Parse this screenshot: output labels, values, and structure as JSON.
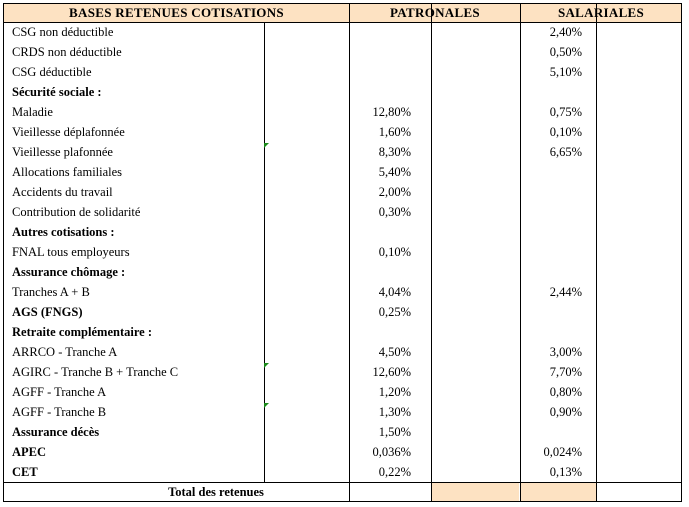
{
  "headers": {
    "bases": "BASES RETENUES COTISATIONS",
    "patronales": "PATRONALES",
    "salariales": "SALARIALES"
  },
  "rows": [
    {
      "label": "CSG non déductible",
      "bold": false,
      "patronal": "",
      "salarial": "2,40%"
    },
    {
      "label": "CRDS non déductible",
      "bold": false,
      "patronal": "",
      "salarial": "0,50%"
    },
    {
      "label": "CSG déductible",
      "bold": false,
      "patronal": "",
      "salarial": "5,10%"
    },
    {
      "label": "Sécurité sociale :",
      "bold": true,
      "patronal": "",
      "salarial": ""
    },
    {
      "label": "Maladie",
      "bold": false,
      "patronal": "12,80%",
      "salarial": "0,75%"
    },
    {
      "label": "Vieillesse déplafonnée",
      "bold": false,
      "patronal": "1,60%",
      "salarial": "0,10%"
    },
    {
      "label": "Vieillesse plafonnée",
      "bold": false,
      "patronal": "8,30%",
      "salarial": "6,65%"
    },
    {
      "label": "Allocations familiales",
      "bold": false,
      "patronal": "5,40%",
      "salarial": ""
    },
    {
      "label": "Accidents du travail",
      "bold": false,
      "patronal": "2,00%",
      "salarial": ""
    },
    {
      "label": "Contribution de solidarité",
      "bold": false,
      "patronal": "0,30%",
      "salarial": ""
    },
    {
      "label": "Autres cotisations :",
      "bold": true,
      "patronal": "",
      "salarial": ""
    },
    {
      "label": "FNAL tous employeurs",
      "bold": false,
      "patronal": "0,10%",
      "salarial": ""
    },
    {
      "label": "Assurance chômage :",
      "bold": true,
      "patronal": "",
      "salarial": ""
    },
    {
      "label": "Tranches A + B",
      "bold": false,
      "patronal": "4,04%",
      "salarial": "2,44%"
    },
    {
      "label": "AGS (FNGS)",
      "bold": true,
      "patronal": "0,25%",
      "salarial": ""
    },
    {
      "label": "Retraite complémentaire :",
      "bold": true,
      "patronal": "",
      "salarial": ""
    },
    {
      "label": "ARRCO - Tranche A",
      "bold": false,
      "patronal": "4,50%",
      "salarial": "3,00%"
    },
    {
      "label": "AGIRC - Tranche B + Tranche C",
      "bold": false,
      "patronal": "12,60%",
      "salarial": "7,70%"
    },
    {
      "label": "AGFF - Tranche A",
      "bold": false,
      "patronal": "1,20%",
      "salarial": "0,80%"
    },
    {
      "label": "AGFF - Tranche B",
      "bold": false,
      "patronal": "1,30%",
      "salarial": "0,90%"
    },
    {
      "label": "Assurance décès",
      "bold": true,
      "patronal": "1,50%",
      "salarial": ""
    },
    {
      "label": "APEC",
      "bold": true,
      "patronal": "0,036%",
      "salarial": "0,024%"
    },
    {
      "label": "CET",
      "bold": true,
      "patronal": "0,22%",
      "salarial": "0,13%"
    }
  ],
  "footer": {
    "total_label": "Total des retenues"
  },
  "colors": {
    "header_fill": "#fde2c2",
    "comment_marker": "#1a8a1a"
  }
}
